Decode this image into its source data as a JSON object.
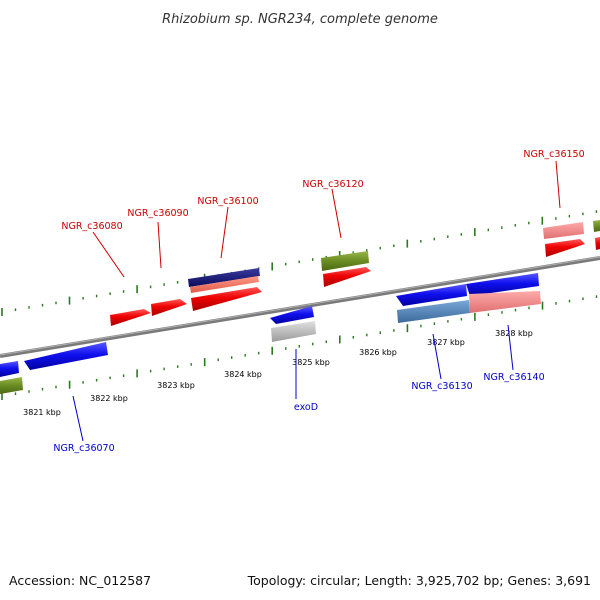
{
  "title": "Rhizobium sp. NGR234, complete genome",
  "footer": {
    "accession": "Accession: NC_012587",
    "summary": "Topology: circular; Length: 3,925,702 bp; Genes: 3,691"
  },
  "colors": {
    "background": "#ffffff",
    "backbone": "#7a7a7a",
    "tick": "#2b7a1e",
    "forward_label": "#cc0000",
    "reverse_label": "#0000cc"
  },
  "ticks": [
    "3821 kbp",
    "3822 kbp",
    "3823 kbp",
    "3824 kbp",
    "3825 kbp",
    "3826 kbp",
    "3827 kbp",
    "3828 kbp"
  ],
  "labels": {
    "forward": [
      "NGR_c36080",
      "NGR_c36090",
      "NGR_c36100",
      "NGR_c36120",
      "NGR_c36150"
    ],
    "reverse": [
      "NGR_c36070",
      "exoD",
      "NGR_c36130",
      "NGR_c36140"
    ]
  }
}
